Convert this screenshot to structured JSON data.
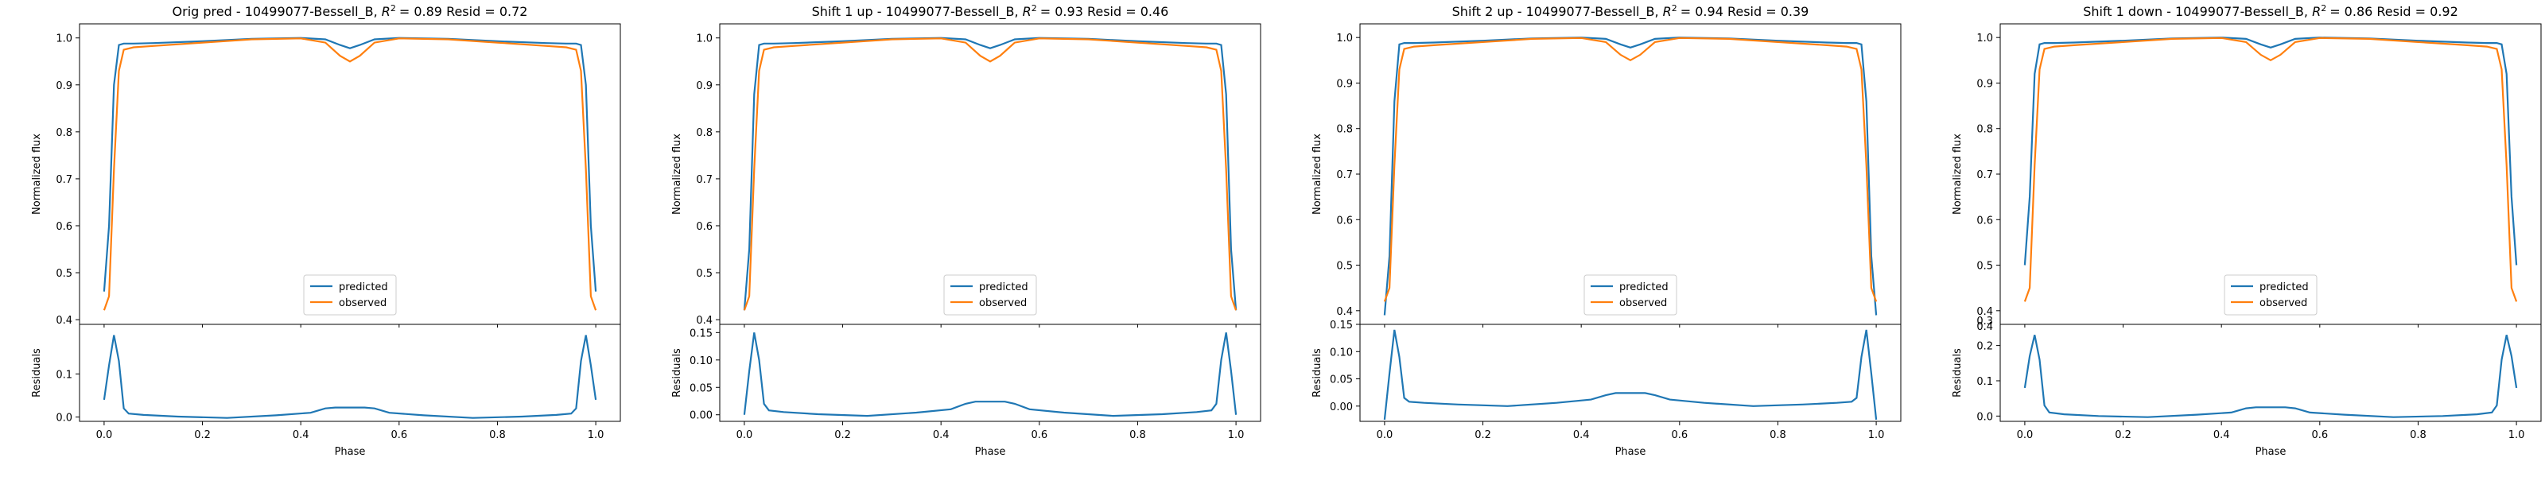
{
  "figure": {
    "colors": {
      "predicted": "#1f77b4",
      "observed": "#ff7f0e"
    }
  },
  "chart_data": [
    {
      "type": "line",
      "title": "Orig pred - 10499077-Bessell_B, $R^2 = 0.89$ Resid = 0.72",
      "title_text": "Orig pred - 10499077-Bessell_B, ",
      "title_r2": "= 0.89 Resid = 0.72",
      "xlabel": "Phase",
      "ylabel": "Normalized flux",
      "ylabel_resid": "Residuals",
      "xlim": [
        -0.05,
        1.05
      ],
      "xticks": [
        "0.0",
        "0.2",
        "0.4",
        "0.6",
        "0.8",
        "1.0"
      ],
      "ylim": [
        0.39,
        1.03
      ],
      "yticks": [
        "0.4",
        "0.5",
        "0.6",
        "0.7",
        "0.8",
        "0.9",
        "1.0"
      ],
      "ylim_resid": [
        -0.01,
        0.215
      ],
      "yticks_resid": [
        "0.0",
        "0.1"
      ],
      "legend": [
        "predicted",
        "observed"
      ],
      "legend_position": "lower center",
      "series": [
        {
          "name": "predicted",
          "x": [
            0.0,
            0.01,
            0.02,
            0.03,
            0.04,
            0.06,
            0.1,
            0.2,
            0.3,
            0.4,
            0.45,
            0.48,
            0.5,
            0.52,
            0.55,
            0.6,
            0.7,
            0.8,
            0.9,
            0.94,
            0.96,
            0.97,
            0.98,
            0.99,
            1.0
          ],
          "values": [
            0.46,
            0.6,
            0.9,
            0.985,
            0.988,
            0.988,
            0.989,
            0.993,
            0.998,
            1.0,
            0.997,
            0.985,
            0.978,
            0.985,
            0.997,
            1.0,
            0.998,
            0.993,
            0.989,
            0.988,
            0.988,
            0.985,
            0.9,
            0.6,
            0.46
          ]
        },
        {
          "name": "observed",
          "x": [
            0.0,
            0.01,
            0.02,
            0.03,
            0.04,
            0.06,
            0.1,
            0.2,
            0.3,
            0.4,
            0.45,
            0.48,
            0.5,
            0.52,
            0.55,
            0.6,
            0.7,
            0.8,
            0.9,
            0.94,
            0.96,
            0.97,
            0.98,
            0.99,
            1.0
          ],
          "values": [
            0.42,
            0.45,
            0.72,
            0.93,
            0.975,
            0.98,
            0.983,
            0.99,
            0.997,
            0.999,
            0.99,
            0.962,
            0.95,
            0.962,
            0.99,
            0.999,
            0.997,
            0.99,
            0.983,
            0.98,
            0.975,
            0.93,
            0.72,
            0.45,
            0.42
          ]
        },
        {
          "name": "residuals",
          "x": [
            0.0,
            0.01,
            0.02,
            0.03,
            0.04,
            0.05,
            0.08,
            0.15,
            0.25,
            0.35,
            0.42,
            0.45,
            0.47,
            0.5,
            0.53,
            0.55,
            0.58,
            0.65,
            0.75,
            0.85,
            0.92,
            0.95,
            0.96,
            0.97,
            0.98,
            0.99,
            1.0
          ],
          "values": [
            0.04,
            0.12,
            0.19,
            0.13,
            0.02,
            0.008,
            0.005,
            0.001,
            -0.002,
            0.004,
            0.01,
            0.02,
            0.022,
            0.022,
            0.022,
            0.02,
            0.01,
            0.004,
            -0.002,
            0.001,
            0.005,
            0.008,
            0.02,
            0.13,
            0.19,
            0.12,
            0.04
          ]
        }
      ]
    },
    {
      "type": "line",
      "title": "Shift 1 up - 10499077-Bessell_B, $R^2 = 0.93$ Resid = 0.46",
      "title_text": "Shift 1 up - 10499077-Bessell_B, ",
      "title_r2": "= 0.93 Resid = 0.46",
      "xlabel": "Phase",
      "ylabel": "Normalized flux",
      "ylabel_resid": "Residuals",
      "xlim": [
        -0.05,
        1.05
      ],
      "xticks": [
        "0.0",
        "0.2",
        "0.4",
        "0.6",
        "0.8",
        "1.0"
      ],
      "ylim": [
        0.39,
        1.03
      ],
      "yticks": [
        "0.4",
        "0.5",
        "0.6",
        "0.7",
        "0.8",
        "0.9",
        "1.0"
      ],
      "ylim_resid": [
        -0.012,
        0.165
      ],
      "yticks_resid": [
        "0.00",
        "0.05",
        "0.10",
        "0.15"
      ],
      "legend": [
        "predicted",
        "observed"
      ],
      "legend_position": "lower center",
      "series": [
        {
          "name": "predicted",
          "x": [
            0.0,
            0.01,
            0.02,
            0.03,
            0.04,
            0.06,
            0.1,
            0.2,
            0.3,
            0.4,
            0.45,
            0.48,
            0.5,
            0.52,
            0.55,
            0.6,
            0.7,
            0.8,
            0.9,
            0.94,
            0.96,
            0.97,
            0.98,
            0.99,
            1.0
          ],
          "values": [
            0.42,
            0.55,
            0.88,
            0.985,
            0.988,
            0.988,
            0.989,
            0.993,
            0.998,
            1.0,
            0.997,
            0.985,
            0.978,
            0.985,
            0.997,
            1.0,
            0.998,
            0.993,
            0.989,
            0.988,
            0.988,
            0.985,
            0.88,
            0.55,
            0.42
          ]
        },
        {
          "name": "observed",
          "x": [
            0.0,
            0.01,
            0.02,
            0.03,
            0.04,
            0.06,
            0.1,
            0.2,
            0.3,
            0.4,
            0.45,
            0.48,
            0.5,
            0.52,
            0.55,
            0.6,
            0.7,
            0.8,
            0.9,
            0.94,
            0.96,
            0.97,
            0.98,
            0.99,
            1.0
          ],
          "values": [
            0.42,
            0.45,
            0.72,
            0.93,
            0.975,
            0.98,
            0.983,
            0.99,
            0.997,
            0.999,
            0.99,
            0.962,
            0.95,
            0.962,
            0.99,
            0.999,
            0.997,
            0.99,
            0.983,
            0.98,
            0.975,
            0.93,
            0.72,
            0.45,
            0.42
          ]
        },
        {
          "name": "residuals",
          "x": [
            0.0,
            0.01,
            0.02,
            0.03,
            0.04,
            0.05,
            0.08,
            0.15,
            0.25,
            0.35,
            0.42,
            0.45,
            0.47,
            0.5,
            0.53,
            0.55,
            0.58,
            0.65,
            0.75,
            0.85,
            0.92,
            0.95,
            0.96,
            0.97,
            0.98,
            0.99,
            1.0
          ],
          "values": [
            0.0,
            0.08,
            0.15,
            0.1,
            0.02,
            0.008,
            0.005,
            0.001,
            -0.002,
            0.004,
            0.01,
            0.02,
            0.024,
            0.024,
            0.024,
            0.02,
            0.01,
            0.004,
            -0.002,
            0.001,
            0.005,
            0.008,
            0.02,
            0.1,
            0.15,
            0.08,
            0.0
          ]
        }
      ]
    },
    {
      "type": "line",
      "title": "Shift 2 up - 10499077-Bessell_B, $R^2 = 0.94$ Resid = 0.39",
      "title_text": "Shift 2 up - 10499077-Bessell_B, ",
      "title_r2": "= 0.94 Resid = 0.39",
      "xlabel": "Phase",
      "ylabel": "Normalized flux",
      "ylabel_resid": "Residuals",
      "xlim": [
        -0.05,
        1.05
      ],
      "xticks": [
        "0.0",
        "0.2",
        "0.4",
        "0.6",
        "0.8",
        "1.0"
      ],
      "ylim": [
        0.37,
        1.03
      ],
      "yticks": [
        "0.4",
        "0.5",
        "0.6",
        "0.7",
        "0.8",
        "0.9",
        "1.0"
      ],
      "ylim_resid": [
        -0.028,
        0.15
      ],
      "yticks_resid": [
        "0.00",
        "0.05",
        "0.10",
        "0.15"
      ],
      "legend": [
        "predicted",
        "observed"
      ],
      "legend_position": "lower center",
      "series": [
        {
          "name": "predicted",
          "x": [
            0.0,
            0.01,
            0.02,
            0.03,
            0.04,
            0.06,
            0.1,
            0.2,
            0.3,
            0.4,
            0.45,
            0.48,
            0.5,
            0.52,
            0.55,
            0.6,
            0.7,
            0.8,
            0.9,
            0.94,
            0.96,
            0.97,
            0.98,
            0.99,
            1.0
          ],
          "values": [
            0.39,
            0.52,
            0.86,
            0.985,
            0.988,
            0.988,
            0.989,
            0.993,
            0.998,
            1.0,
            0.997,
            0.985,
            0.978,
            0.985,
            0.997,
            1.0,
            0.998,
            0.993,
            0.989,
            0.988,
            0.988,
            0.985,
            0.86,
            0.52,
            0.39
          ]
        },
        {
          "name": "observed",
          "x": [
            0.0,
            0.01,
            0.02,
            0.03,
            0.04,
            0.06,
            0.1,
            0.2,
            0.3,
            0.4,
            0.45,
            0.48,
            0.5,
            0.52,
            0.55,
            0.6,
            0.7,
            0.8,
            0.9,
            0.94,
            0.96,
            0.97,
            0.98,
            0.99,
            1.0
          ],
          "values": [
            0.42,
            0.45,
            0.72,
            0.93,
            0.975,
            0.98,
            0.983,
            0.99,
            0.997,
            0.999,
            0.99,
            0.962,
            0.95,
            0.962,
            0.99,
            0.999,
            0.997,
            0.99,
            0.983,
            0.98,
            0.975,
            0.93,
            0.72,
            0.45,
            0.42
          ]
        },
        {
          "name": "residuals",
          "x": [
            0.0,
            0.01,
            0.02,
            0.03,
            0.04,
            0.05,
            0.08,
            0.15,
            0.25,
            0.35,
            0.42,
            0.45,
            0.47,
            0.5,
            0.53,
            0.55,
            0.58,
            0.65,
            0.75,
            0.85,
            0.92,
            0.95,
            0.96,
            0.97,
            0.98,
            0.99,
            1.0
          ],
          "values": [
            -0.025,
            0.06,
            0.14,
            0.09,
            0.015,
            0.008,
            0.006,
            0.003,
            0.0,
            0.006,
            0.012,
            0.02,
            0.024,
            0.024,
            0.024,
            0.02,
            0.012,
            0.006,
            0.0,
            0.003,
            0.006,
            0.008,
            0.015,
            0.09,
            0.14,
            0.06,
            -0.025
          ]
        }
      ]
    },
    {
      "type": "line",
      "title": "Shift 1 down - 10499077-Bessell_B, $R^2 = 0.86$ Resid = 0.92",
      "title_text": "Shift 1 down - 10499077-Bessell_B, ",
      "title_r2": "= 0.86 Resid = 0.92",
      "xlabel": "Phase",
      "ylabel": "Normalized flux",
      "ylabel_resid": "Residuals",
      "xlim": [
        -0.05,
        1.05
      ],
      "xticks": [
        "0.0",
        "0.2",
        "0.4",
        "0.6",
        "0.8",
        "1.0"
      ],
      "ylim": [
        0.37,
        1.03
      ],
      "yticks": [
        "0.4",
        "0.5",
        "0.6",
        "0.7",
        "0.8",
        "0.9",
        "1.0"
      ],
      "ylim_resid": [
        -0.015,
        0.26
      ],
      "yticks_resid": [
        "0.0",
        "0.1",
        "0.2"
      ],
      "yticks_resid_top": [
        "0.3",
        "0.4"
      ],
      "legend": [
        "predicted",
        "observed"
      ],
      "legend_position": "lower center",
      "series": [
        {
          "name": "predicted",
          "x": [
            0.0,
            0.01,
            0.02,
            0.03,
            0.04,
            0.06,
            0.1,
            0.2,
            0.3,
            0.4,
            0.45,
            0.48,
            0.5,
            0.52,
            0.55,
            0.6,
            0.7,
            0.8,
            0.9,
            0.94,
            0.96,
            0.97,
            0.98,
            0.99,
            1.0
          ],
          "values": [
            0.5,
            0.65,
            0.92,
            0.985,
            0.988,
            0.988,
            0.989,
            0.993,
            0.998,
            1.0,
            0.997,
            0.985,
            0.978,
            0.985,
            0.997,
            1.0,
            0.998,
            0.993,
            0.989,
            0.988,
            0.988,
            0.985,
            0.92,
            0.65,
            0.5
          ]
        },
        {
          "name": "observed",
          "x": [
            0.0,
            0.01,
            0.02,
            0.03,
            0.04,
            0.06,
            0.1,
            0.2,
            0.3,
            0.4,
            0.45,
            0.48,
            0.5,
            0.52,
            0.55,
            0.6,
            0.7,
            0.8,
            0.9,
            0.94,
            0.96,
            0.97,
            0.98,
            0.99,
            1.0
          ],
          "values": [
            0.42,
            0.45,
            0.72,
            0.93,
            0.975,
            0.98,
            0.983,
            0.99,
            0.997,
            0.999,
            0.99,
            0.962,
            0.95,
            0.962,
            0.99,
            0.999,
            0.997,
            0.99,
            0.983,
            0.98,
            0.975,
            0.93,
            0.72,
            0.45,
            0.42
          ]
        },
        {
          "name": "residuals",
          "x": [
            0.0,
            0.01,
            0.02,
            0.03,
            0.04,
            0.05,
            0.08,
            0.15,
            0.25,
            0.35,
            0.42,
            0.45,
            0.47,
            0.5,
            0.53,
            0.55,
            0.58,
            0.65,
            0.75,
            0.85,
            0.92,
            0.95,
            0.96,
            0.97,
            0.98,
            0.99,
            1.0
          ],
          "values": [
            0.08,
            0.17,
            0.23,
            0.16,
            0.03,
            0.01,
            0.005,
            0.0,
            -0.003,
            0.004,
            0.01,
            0.022,
            0.025,
            0.025,
            0.025,
            0.022,
            0.01,
            0.004,
            -0.003,
            0.0,
            0.005,
            0.01,
            0.03,
            0.16,
            0.23,
            0.17,
            0.08
          ]
        }
      ]
    }
  ]
}
